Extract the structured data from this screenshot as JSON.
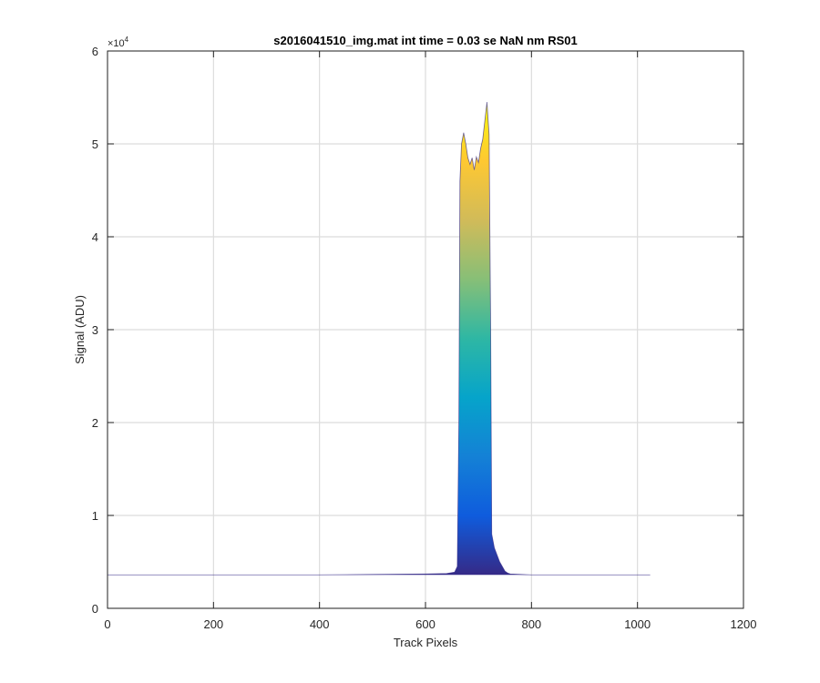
{
  "chart_data": {
    "type": "area",
    "title": "s2016041510_img.mat int time = 0.03 se  NaN nm RS01",
    "xlabel": "Track Pixels",
    "ylabel": "Signal (ADU)",
    "xlim": [
      0,
      1200
    ],
    "ylim": [
      0,
      60000
    ],
    "y_multiplier": "×10",
    "y_multiplier_exp": "4",
    "xticks": [
      0,
      200,
      400,
      600,
      800,
      1000,
      1200
    ],
    "yticks": [
      0,
      10000,
      20000,
      30000,
      40000,
      50000,
      60000
    ],
    "xtick_labels": [
      "0",
      "200",
      "400",
      "600",
      "800",
      "1000",
      "1200"
    ],
    "ytick_labels": [
      "0",
      "1",
      "2",
      "3",
      "4",
      "5",
      "6"
    ],
    "grid": true,
    "colormap": "parula",
    "colormap_stops": [
      "#352a87",
      "#0f5cdd",
      "#1481d6",
      "#06a4ca",
      "#2eb7a4",
      "#87bf77",
      "#d1bb59",
      "#fec832",
      "#f9fb0e"
    ],
    "series": [
      {
        "x": [
          0,
          100,
          200,
          300,
          400,
          500,
          600,
          640,
          655,
          660,
          663,
          665,
          668,
          672,
          676,
          680,
          684,
          688,
          692,
          696,
          700,
          704,
          708,
          712,
          716,
          720,
          723,
          725,
          730,
          740,
          750,
          755,
          760,
          780,
          800,
          900,
          1024
        ],
        "y": [
          3600,
          3600,
          3600,
          3600,
          3600,
          3650,
          3700,
          3750,
          3900,
          4500,
          20000,
          46000,
          50000,
          51200,
          50000,
          48500,
          47800,
          48500,
          47200,
          48600,
          48000,
          49500,
          50500,
          52500,
          54500,
          51000,
          30000,
          8000,
          6500,
          5000,
          4000,
          3800,
          3700,
          3650,
          3600,
          3600,
          3600
        ]
      }
    ]
  }
}
